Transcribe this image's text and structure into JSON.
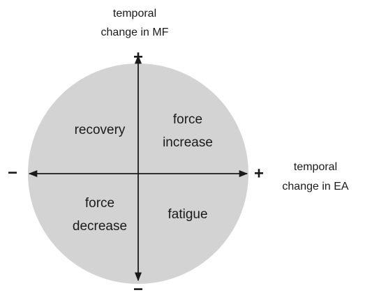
{
  "axes": {
    "y": {
      "label": [
        "temporal",
        "change in MF"
      ],
      "positive": "+",
      "negative": "−"
    },
    "x": {
      "label": [
        "temporal",
        "change in EA"
      ],
      "positive": "+",
      "negative": "−"
    }
  },
  "quadrants": [
    {
      "label": [
        "recovery"
      ]
    },
    {
      "label": [
        "force",
        "increase"
      ]
    },
    {
      "label": [
        "force",
        "decrease"
      ]
    },
    {
      "label": [
        "fatigue"
      ]
    }
  ]
}
